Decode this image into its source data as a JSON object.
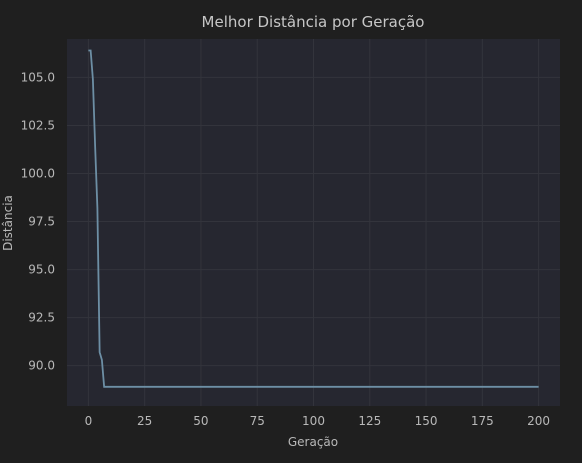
{
  "chart_data": {
    "type": "line",
    "title": "Melhor Distância por Geração",
    "xlabel": "Geração",
    "ylabel": "Distância",
    "xlim": [
      -9.5,
      209.5
    ],
    "ylim": [
      87.9,
      107.0
    ],
    "xticks": [
      0,
      25,
      50,
      75,
      100,
      125,
      150,
      175,
      200
    ],
    "yticks": [
      90.0,
      92.5,
      95.0,
      97.5,
      100.0,
      102.5,
      105.0
    ],
    "xtick_labels": [
      "0",
      "25",
      "50",
      "75",
      "100",
      "125",
      "150",
      "175",
      "200"
    ],
    "ytick_labels": [
      "90.0",
      "92.5",
      "95.0",
      "97.5",
      "100.0",
      "102.5",
      "105.0"
    ],
    "grid": true,
    "colors": {
      "figure_bg": "#1f1f1f",
      "plot_bg": "#262730",
      "grid": "#33343c",
      "line": "#6d8fa5",
      "text": "#b8b8b8",
      "title": "#c6c6c6"
    },
    "series": [
      {
        "x": [
          0,
          1,
          2,
          3,
          4,
          5,
          6,
          7,
          8,
          200
        ],
        "y": [
          106.4,
          106.4,
          104.9,
          101.4,
          98.2,
          90.7,
          90.3,
          88.9,
          88.9,
          88.9
        ]
      }
    ]
  }
}
